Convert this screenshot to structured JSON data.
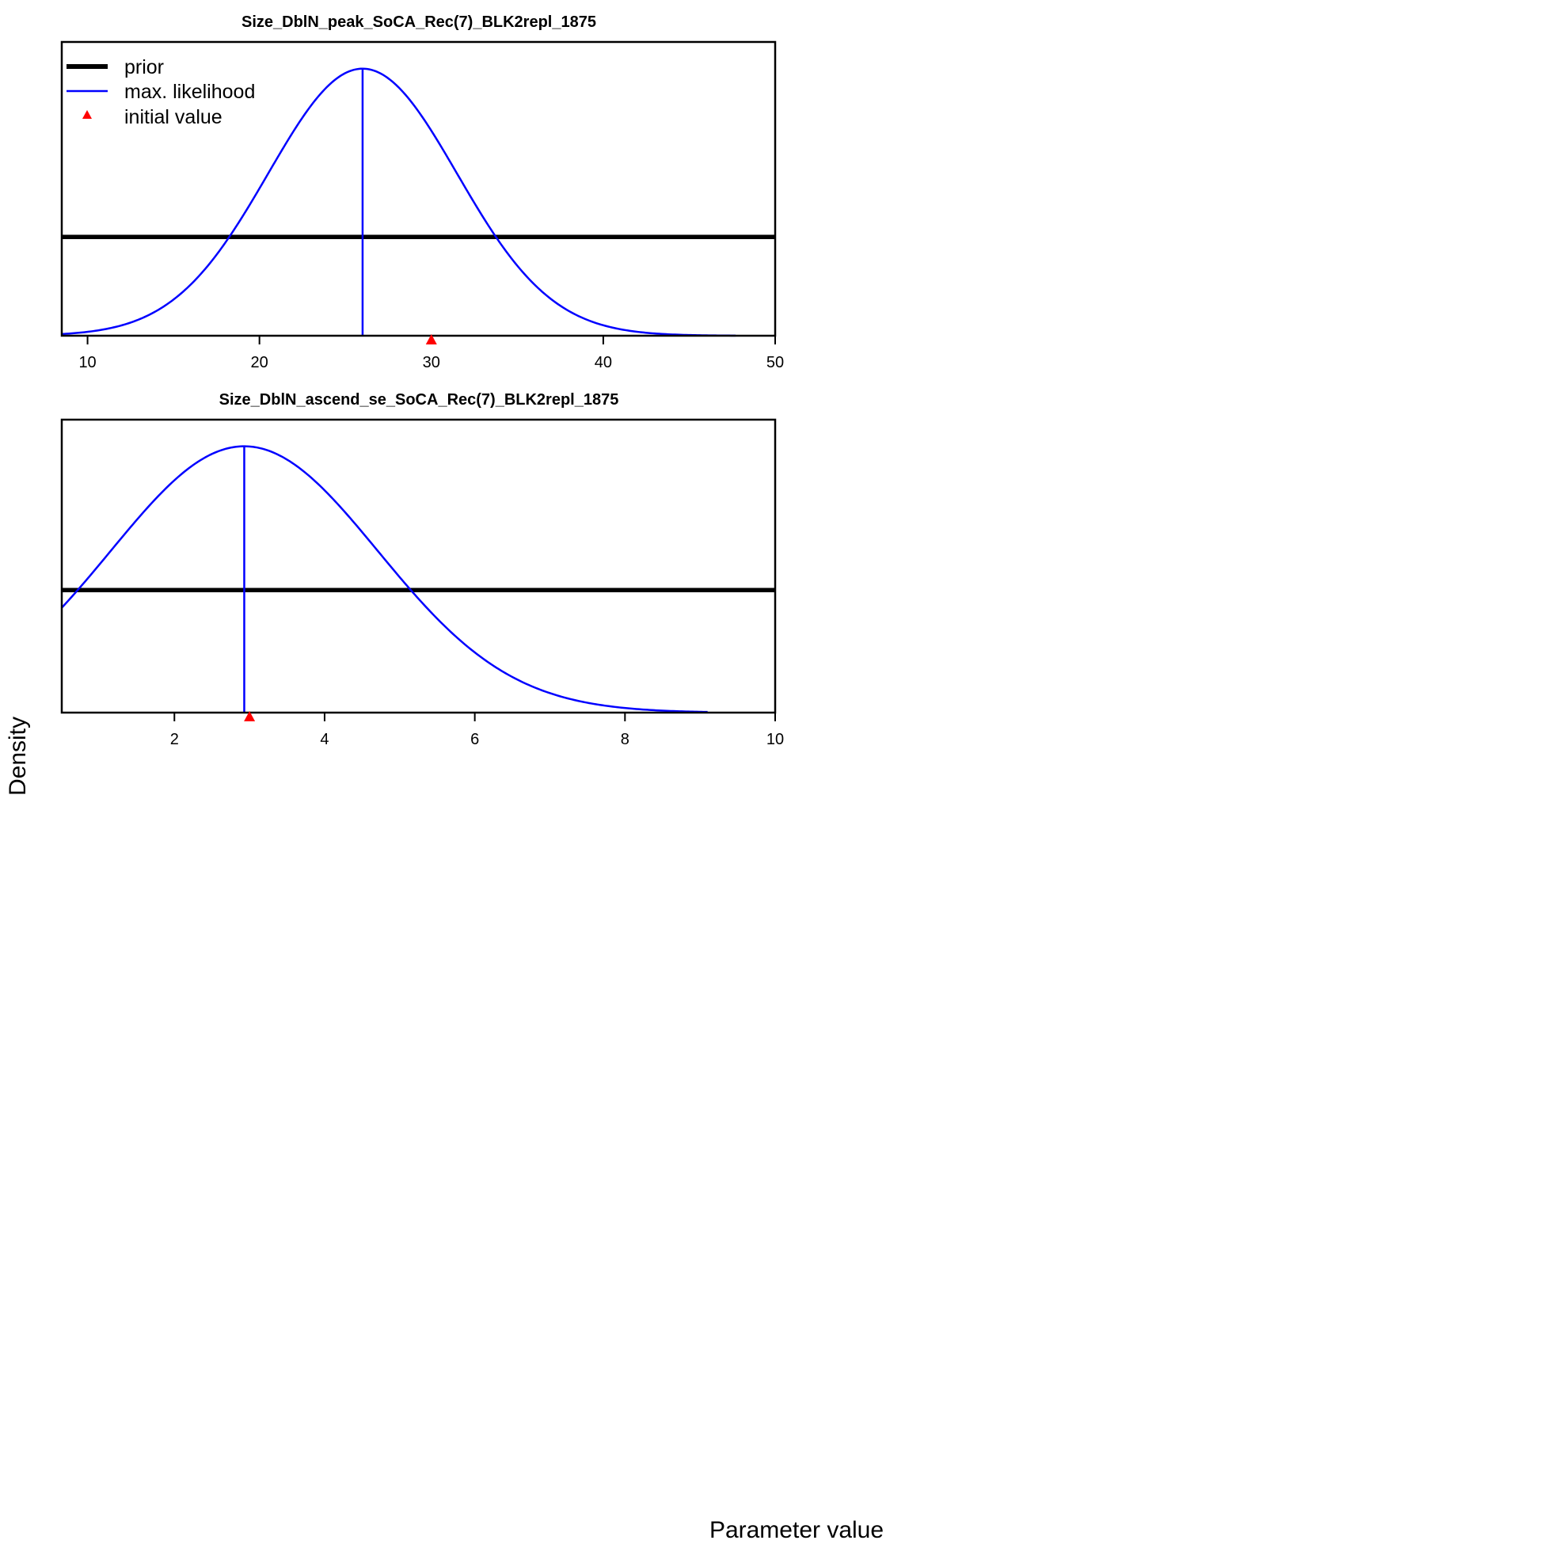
{
  "figure": {
    "ylabel": "Density",
    "xlabel": "Parameter value"
  },
  "legend": {
    "placement": "top-left",
    "items": [
      {
        "label": "prior",
        "kind": "line",
        "color": "#000000"
      },
      {
        "label": "max. likelihood",
        "kind": "line",
        "color": "#0000ff"
      },
      {
        "label": "initial value",
        "kind": "triangle",
        "color": "#ff0000"
      }
    ]
  },
  "chart_data": [
    {
      "type": "line",
      "title": "Size_DblN_peak_SoCA_Rec(7)_BLK2repl_1875",
      "xlim": [
        8.5,
        50
      ],
      "xticks": [
        10,
        20,
        30,
        40,
        50
      ],
      "ylim": [
        0,
        1.1
      ],
      "grid": false,
      "y_axis_shown": false,
      "series": [
        {
          "name": "prior",
          "color": "#000000",
          "kind": "flat",
          "x": [
            8.5,
            50
          ],
          "y": [
            0.37,
            0.37
          ]
        },
        {
          "name": "max. likelihood",
          "color": "#0000ff",
          "kind": "normal",
          "mean": 26.0,
          "sd": 5.5,
          "x_range": [
            8.5,
            47.7
          ],
          "peak_density": 1.0
        }
      ],
      "mle_line_x": 26.0,
      "initial_value": 30
    },
    {
      "type": "line",
      "title": "Size_DblN_ascend_se_SoCA_Rec(7)_BLK2repl_1875",
      "xlim": [
        0.5,
        10
      ],
      "xticks": [
        2,
        4,
        6,
        8,
        10
      ],
      "ylim": [
        0,
        1.1
      ],
      "grid": false,
      "y_axis_shown": false,
      "series": [
        {
          "name": "prior",
          "color": "#000000",
          "kind": "flat",
          "x": [
            0.5,
            10
          ],
          "y": [
            0.46,
            0.46
          ]
        },
        {
          "name": "max. likelihood",
          "color": "#0000ff",
          "kind": "normal",
          "mean": 2.93,
          "sd": 1.78,
          "x_range": [
            0.5,
            9.1
          ],
          "peak_density": 1.0
        }
      ],
      "mle_line_x": 2.93,
      "initial_value": 3
    }
  ]
}
